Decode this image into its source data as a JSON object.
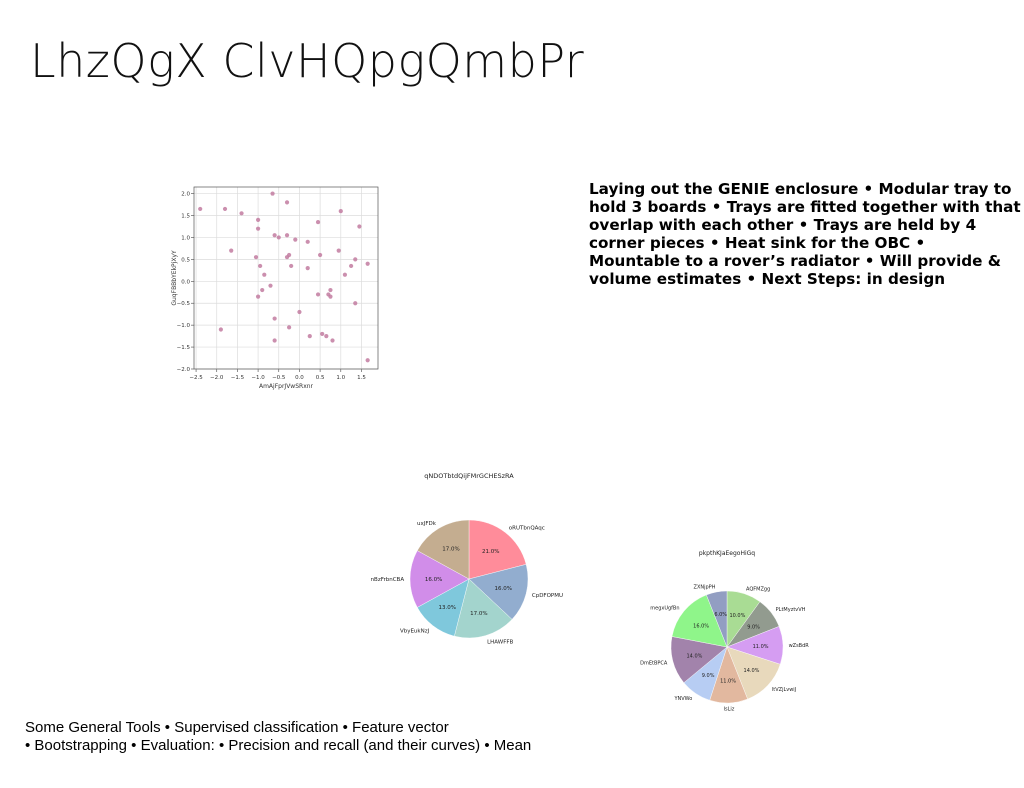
{
  "title": "LhzQgX ClvHQpgQmbPr",
  "right_text": "Laying out the GENIE enclosure • Modular tray to hold 3 boards • Trays are fitted together with that overlap with each other • Trays are held by 4 corner pieces • Heat sink for the OBC • Mountable to a rover’s radiator • Will provide & volume estimates • Next Steps: in design",
  "bottom_text": {
    "line1": "Some General Tools • Supervised classification • Feature vector",
    "line2": "• Bootstrapping • Evaluation: • Precision and recall (and their curves) • Mean"
  },
  "chart_data": [
    {
      "type": "scatter",
      "xlabel": "AmAjFprJVwSRxnr",
      "ylabel": "GuqFBBbYEkPjXyY",
      "xlim": [
        -2.55,
        1.9
      ],
      "ylim": [
        -2.0,
        2.15
      ],
      "xticks": [
        "-2.5",
        "-2.0",
        "-1.5",
        "-1.0",
        "-0.5",
        "0.0",
        "0.5",
        "1.0",
        "1.5"
      ],
      "yticks": [
        "-2.0",
        "-1.5",
        "-1.0",
        "-0.5",
        "0.0",
        "0.5",
        "1.0",
        "1.5",
        "2.0"
      ],
      "grid": true,
      "color": "#c27ba0",
      "points": [
        [
          -2.4,
          1.65
        ],
        [
          -1.8,
          1.65
        ],
        [
          -1.9,
          -1.1
        ],
        [
          -1.4,
          1.55
        ],
        [
          -1.65,
          0.7
        ],
        [
          -1.0,
          1.4
        ],
        [
          -1.0,
          1.2
        ],
        [
          -1.05,
          0.55
        ],
        [
          -0.95,
          0.35
        ],
        [
          -1.0,
          -0.35
        ],
        [
          -0.9,
          -0.2
        ],
        [
          -0.85,
          0.15
        ],
        [
          -0.7,
          -0.1
        ],
        [
          -0.65,
          2.0
        ],
        [
          -0.6,
          1.05
        ],
        [
          -0.5,
          1.0
        ],
        [
          -0.6,
          -0.85
        ],
        [
          -0.6,
          -1.35
        ],
        [
          -0.3,
          1.8
        ],
        [
          -0.3,
          1.05
        ],
        [
          -0.3,
          0.55
        ],
        [
          -0.25,
          0.6
        ],
        [
          -0.2,
          0.35
        ],
        [
          -0.1,
          0.95
        ],
        [
          -0.25,
          -1.05
        ],
        [
          0.0,
          -0.7
        ],
        [
          0.2,
          0.9
        ],
        [
          0.2,
          0.3
        ],
        [
          0.25,
          -1.25
        ],
        [
          0.45,
          1.35
        ],
        [
          0.5,
          0.6
        ],
        [
          0.45,
          -0.3
        ],
        [
          0.55,
          -1.2
        ],
        [
          0.65,
          -1.25
        ],
        [
          0.7,
          -0.3
        ],
        [
          0.75,
          -0.2
        ],
        [
          0.75,
          -0.35
        ],
        [
          0.8,
          -1.35
        ],
        [
          0.95,
          0.7
        ],
        [
          1.0,
          1.6
        ],
        [
          1.1,
          0.15
        ],
        [
          1.25,
          0.35
        ],
        [
          1.35,
          -0.5
        ],
        [
          1.35,
          0.5
        ],
        [
          1.45,
          1.25
        ],
        [
          1.65,
          0.4
        ],
        [
          1.65,
          -1.8
        ]
      ]
    },
    {
      "type": "pie",
      "title": "qNDOTbtdQijFMrGCHESzRA",
      "slices": [
        {
          "label": "oRUTbnQAqc",
          "value": 21.0,
          "pct": "21.0%",
          "color": "#ff8c9a"
        },
        {
          "label": "CpDFOPMU",
          "value": 16.0,
          "pct": "16.0%",
          "color": "#92adcf"
        },
        {
          "label": "LHAWFFB",
          "value": 17.0,
          "pct": "17.0%",
          "color": "#a3d4cd"
        },
        {
          "label": "VbyEukNzJ",
          "value": 13.0,
          "pct": "13.0%",
          "color": "#7fc8dc"
        },
        {
          "label": "nBzFrbnCBA",
          "value": 16.0,
          "pct": "16.0%",
          "color": "#d18de9"
        },
        {
          "label": "uxJFDk",
          "value": 17.0,
          "pct": "17.0%",
          "color": "#c4ad90"
        }
      ]
    },
    {
      "type": "pie",
      "title": "pkpthKJaEegoHiGq",
      "slices": [
        {
          "label": "AQFMZgg",
          "value": 10.0,
          "pct": "10.0%",
          "color": "#a9dc94"
        },
        {
          "label": "PLtMyztvVH",
          "value": 9.0,
          "pct": "9.0%",
          "color": "#929b8f"
        },
        {
          "label": "wZsBdR",
          "value": 11.0,
          "pct": "11.0%",
          "color": "#d59df2"
        },
        {
          "label": "ltVZjLvwiJ",
          "value": 14.0,
          "pct": "14.0%",
          "color": "#e8d9bc"
        },
        {
          "label": "IsLiz",
          "value": 11.0,
          "pct": "11.0%",
          "color": "#e2b89f"
        },
        {
          "label": "YNVWo",
          "value": 9.0,
          "pct": "9.0%",
          "color": "#b7cdf3"
        },
        {
          "label": "DmEtBPCA",
          "value": 14.0,
          "pct": "14.0%",
          "color": "#a283ab"
        },
        {
          "label": "megxUgfBn",
          "value": 16.0,
          "pct": "16.0%",
          "color": "#8ff58a"
        },
        {
          "label": "ZXNjpPH",
          "value": 6.0,
          "pct": "6.0%",
          "color": "#929ec2"
        }
      ]
    }
  ]
}
